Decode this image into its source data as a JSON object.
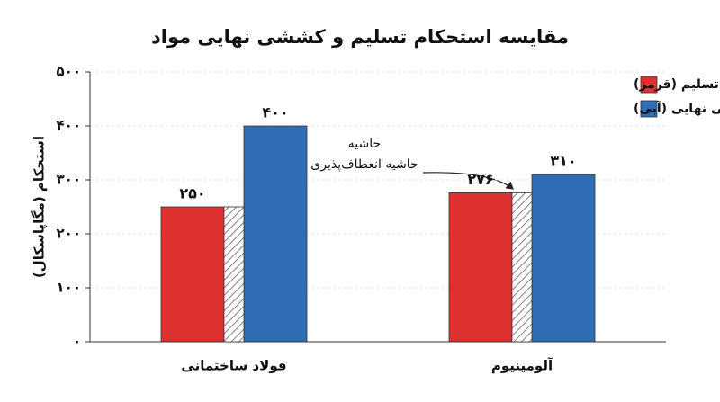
{
  "chart_data": {
    "type": "bar",
    "title": "مقایسه استحکام تسلیم و کششی نهایی مواد",
    "y_label": "استحکام (مگاپاسکال)",
    "categories": [
      "فولاد ساختمانی",
      "آلومینیوم"
    ],
    "series": [
      {
        "name": "استحکام تسلیم (قرمز)",
        "color": "#e03131",
        "values": [
          250,
          276
        ],
        "value_labels": [
          "۲۵۰",
          "۲۷۶"
        ]
      },
      {
        "name": "استحکام کششی نهایی (آبی)",
        "color": "#2f6db5",
        "values": [
          400,
          310
        ],
        "value_labels": [
          "۴۰۰",
          "۳۱۰"
        ]
      }
    ],
    "ylim": [
      0,
      500
    ],
    "yticks": [
      {
        "value": 0,
        "label": "۰"
      },
      {
        "value": 100,
        "label": "۱۰۰"
      },
      {
        "value": 200,
        "label": "۲۰۰"
      },
      {
        "value": 300,
        "label": "۳۰۰"
      },
      {
        "value": 400,
        "label": "۴۰۰"
      },
      {
        "value": 500,
        "label": "۵۰۰"
      }
    ],
    "grid": true,
    "legend": "upper right",
    "annotation": {
      "title": "حاشیه",
      "text": "حاشیه انعطاف‌پذیری"
    }
  }
}
